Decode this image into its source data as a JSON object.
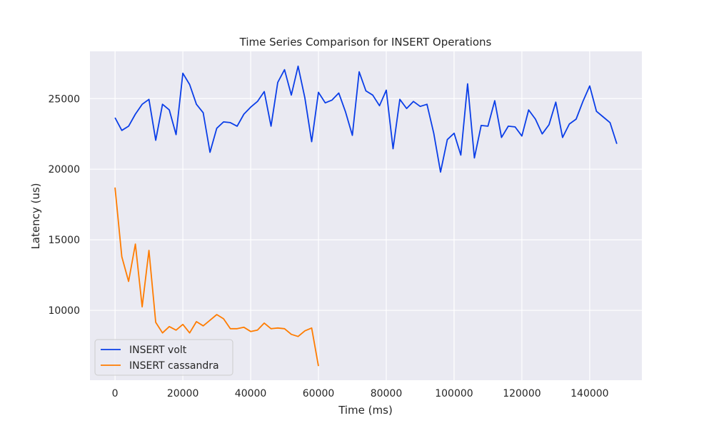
{
  "chart_data": {
    "type": "line",
    "title": "Time Series Comparison for INSERT Operations",
    "xlabel": "Time (ms)",
    "ylabel": "Latency (us)",
    "xlim": [
      -7400,
      155400
    ],
    "ylim": [
      5050,
      28350
    ],
    "x_ticks": [
      0,
      20000,
      40000,
      60000,
      80000,
      100000,
      120000,
      140000
    ],
    "y_ticks": [
      10000,
      15000,
      20000,
      25000
    ],
    "grid": true,
    "legend_position": "lower-left",
    "background": "#eaeaf2",
    "series": [
      {
        "name": "INSERT volt",
        "color": "#0a3ee8",
        "x": [
          0,
          2000,
          4000,
          6000,
          8000,
          10000,
          12000,
          14000,
          16000,
          18000,
          20000,
          22000,
          24000,
          26000,
          28000,
          30000,
          32000,
          34000,
          36000,
          38000,
          40000,
          42000,
          44000,
          46000,
          48000,
          50000,
          52000,
          54000,
          56000,
          58000,
          60000,
          62000,
          64000,
          66000,
          68000,
          70000,
          72000,
          74000,
          76000,
          78000,
          80000,
          82000,
          84000,
          86000,
          88000,
          90000,
          92000,
          94000,
          96000,
          98000,
          100000,
          102000,
          104000,
          106000,
          108000,
          110000,
          112000,
          114000,
          116000,
          118000,
          120000,
          122000,
          124000,
          126000,
          128000,
          130000,
          132000,
          134000,
          136000,
          138000,
          140000,
          142000,
          144000,
          146000,
          148000
        ],
        "y": [
          23650,
          22750,
          23050,
          23900,
          24600,
          24950,
          22050,
          24600,
          24200,
          22450,
          26800,
          26000,
          24600,
          24000,
          21200,
          22900,
          23350,
          23300,
          23050,
          23900,
          24400,
          24800,
          25500,
          23050,
          26150,
          27050,
          25250,
          27300,
          25050,
          21950,
          25450,
          24700,
          24900,
          25400,
          24050,
          22400,
          26900,
          25550,
          25250,
          24500,
          25600,
          21450,
          24950,
          24300,
          24800,
          24450,
          24600,
          22550,
          19800,
          22100,
          22550,
          21000,
          26050,
          20800,
          23100,
          23050,
          24850,
          22250,
          23050,
          23000,
          22350,
          24200,
          23550,
          22500,
          23150,
          24750,
          22250,
          23200,
          23550,
          24800,
          25900,
          24100,
          23700,
          23300,
          21800
        ]
      },
      {
        "name": "INSERT cassandra",
        "color": "#ff7c00",
        "x": [
          0,
          2000,
          4000,
          6000,
          8000,
          10000,
          12000,
          14000,
          16000,
          18000,
          20000,
          22000,
          24000,
          26000,
          28000,
          30000,
          32000,
          34000,
          36000,
          38000,
          40000,
          42000,
          44000,
          46000,
          48000,
          50000,
          52000,
          54000,
          56000,
          58000,
          60000
        ],
        "y": [
          18700,
          13800,
          12050,
          14700,
          10250,
          14250,
          9150,
          8400,
          8850,
          8600,
          9000,
          8400,
          9200,
          8900,
          9300,
          9700,
          9400,
          8700,
          8700,
          8800,
          8500,
          8600,
          9100,
          8700,
          8750,
          8700,
          8300,
          8150,
          8550,
          8750,
          6050
        ]
      }
    ]
  }
}
